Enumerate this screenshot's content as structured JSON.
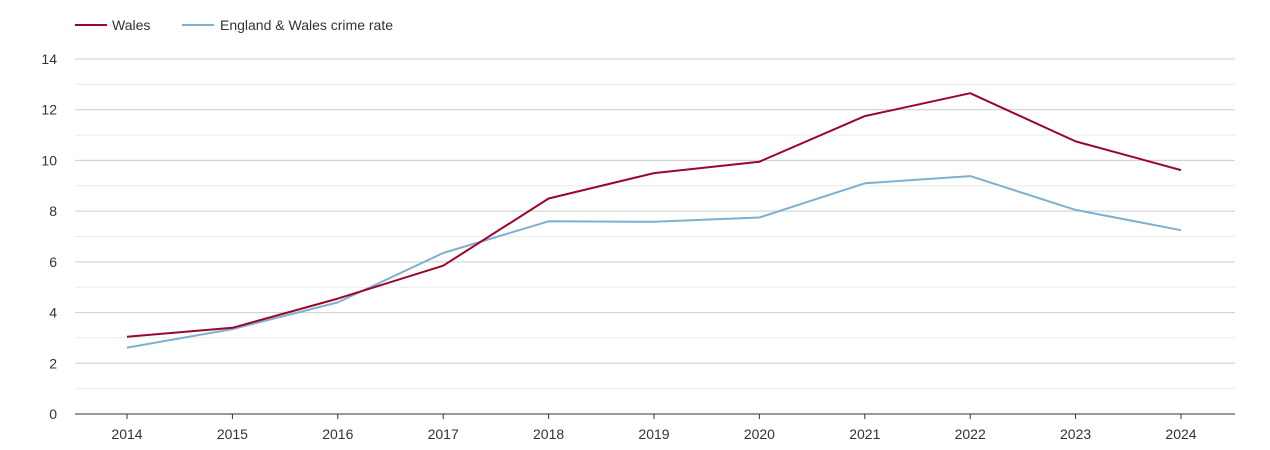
{
  "chart_data": {
    "type": "line",
    "x": [
      "2014",
      "2015",
      "2016",
      "2017",
      "2018",
      "2019",
      "2020",
      "2021",
      "2022",
      "2023",
      "2024"
    ],
    "series": [
      {
        "name": "Wales",
        "color": "#99072b",
        "values": [
          3.05,
          3.4,
          4.55,
          5.85,
          8.5,
          9.5,
          9.95,
          11.75,
          12.65,
          10.75,
          9.62
        ]
      },
      {
        "name": "England & Wales crime rate",
        "color": "#7db0d3",
        "values": [
          2.62,
          3.35,
          4.4,
          6.35,
          7.6,
          7.58,
          7.75,
          9.1,
          9.38,
          8.05,
          7.25
        ]
      }
    ],
    "y_ticks": [
      "0",
      "2",
      "4",
      "6",
      "8",
      "10",
      "12",
      "14"
    ],
    "ylim": [
      0,
      14
    ],
    "title": "",
    "xlabel": "",
    "ylabel": "",
    "grid": true,
    "legend": "top-left"
  }
}
